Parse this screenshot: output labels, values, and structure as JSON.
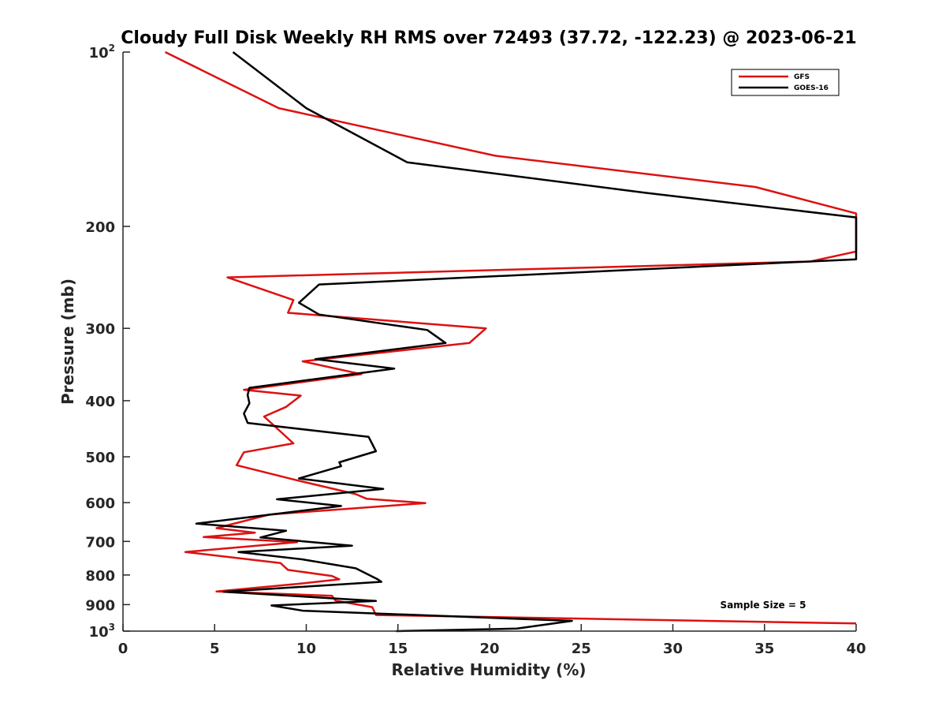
{
  "chart_data": {
    "type": "line",
    "title": "Cloudy Full Disk Weekly RH RMS over 72493 (37.72, -122.23) @ 2023-06-21",
    "xlabel": "Relative Humidity (%)",
    "ylabel": "Pressure (mb)",
    "xlim": [
      0,
      40
    ],
    "ylim": [
      100,
      1000
    ],
    "y_scale": "log",
    "y_reversed": true,
    "grid": false,
    "legend_position": "top-right",
    "x_ticks": [
      0,
      5,
      10,
      15,
      20,
      25,
      30,
      35,
      40
    ],
    "x_tick_labels": [
      "0",
      "5",
      "10",
      "15",
      "20",
      "25",
      "30",
      "35",
      "40"
    ],
    "y_ticks": [
      {
        "value": 100,
        "base": "10",
        "exp": "2"
      },
      {
        "value": 200,
        "label": "200"
      },
      {
        "value": 300,
        "label": "300"
      },
      {
        "value": 400,
        "label": "400"
      },
      {
        "value": 500,
        "label": "500"
      },
      {
        "value": 600,
        "label": "600"
      },
      {
        "value": 700,
        "label": "700"
      },
      {
        "value": 800,
        "label": "800"
      },
      {
        "value": 900,
        "label": "900"
      },
      {
        "value": 1000,
        "base": "10",
        "exp": "3"
      }
    ],
    "annotation": "Sample Size = 5",
    "series": [
      {
        "name": "GFS",
        "color": "#dd1111",
        "points": [
          [
            2.3,
            100
          ],
          [
            8.5,
            125
          ],
          [
            20.3,
            151
          ],
          [
            34.5,
            171
          ],
          [
            40,
            190
          ],
          [
            40,
            221
          ],
          [
            37.5,
            230
          ],
          [
            5.7,
            245
          ],
          [
            9.3,
            268
          ],
          [
            9.0,
            282
          ],
          [
            19.8,
            300
          ],
          [
            18.9,
            318
          ],
          [
            9.8,
            342
          ],
          [
            13.0,
            360
          ],
          [
            6.6,
            383
          ],
          [
            9.7,
            392
          ],
          [
            8.9,
            410
          ],
          [
            7.7,
            426
          ],
          [
            9.3,
            474
          ],
          [
            6.6,
            491
          ],
          [
            6.2,
            517
          ],
          [
            9.4,
            548
          ],
          [
            12.7,
            580
          ],
          [
            13.3,
            591
          ],
          [
            16.5,
            601
          ],
          [
            8.0,
            629
          ],
          [
            5.1,
            664
          ],
          [
            7.2,
            676
          ],
          [
            4.4,
            688
          ],
          [
            9.5,
            702
          ],
          [
            3.4,
            730
          ],
          [
            8.6,
            763
          ],
          [
            9.0,
            784
          ],
          [
            11.4,
            803
          ],
          [
            11.8,
            814
          ],
          [
            9.7,
            828
          ],
          [
            5.1,
            854
          ],
          [
            11.4,
            869
          ],
          [
            11.6,
            886
          ],
          [
            13.6,
            909
          ],
          [
            13.8,
            938
          ],
          [
            40,
            970
          ]
        ]
      },
      {
        "name": "GOES-16",
        "color": "#000000",
        "points": [
          [
            6.0,
            100
          ],
          [
            10.0,
            125
          ],
          [
            15.5,
            155
          ],
          [
            28.5,
            175
          ],
          [
            40,
            193
          ],
          [
            40,
            228
          ],
          [
            10.7,
            252
          ],
          [
            9.6,
            271
          ],
          [
            10.7,
            284
          ],
          [
            16.6,
            302
          ],
          [
            17.6,
            318
          ],
          [
            10.5,
            339
          ],
          [
            14.8,
            352
          ],
          [
            6.9,
            380
          ],
          [
            6.8,
            391
          ],
          [
            6.9,
            404
          ],
          [
            6.6,
            421
          ],
          [
            6.8,
            437
          ],
          [
            13.4,
            462
          ],
          [
            13.8,
            489
          ],
          [
            11.8,
            511
          ],
          [
            11.9,
            519
          ],
          [
            9.6,
            545
          ],
          [
            14.2,
            568
          ],
          [
            8.4,
            592
          ],
          [
            11.9,
            608
          ],
          [
            4.0,
            652
          ],
          [
            8.9,
            671
          ],
          [
            7.5,
            689
          ],
          [
            12.5,
            712
          ],
          [
            6.3,
            730
          ],
          [
            9.8,
            752
          ],
          [
            12.7,
            779
          ],
          [
            13.9,
            814
          ],
          [
            14.1,
            822
          ],
          [
            5.5,
            855
          ],
          [
            13.8,
            887
          ],
          [
            8.1,
            903
          ],
          [
            9.8,
            922
          ],
          [
            24.5,
            960
          ],
          [
            21.5,
            990
          ],
          [
            14.9,
            1000
          ]
        ]
      }
    ]
  }
}
